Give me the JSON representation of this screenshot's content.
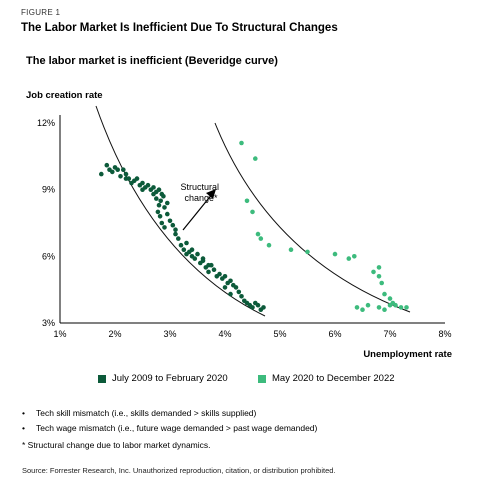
{
  "figure_label": "FIGURE 1",
  "figure_title": "The Labor Market Is Inefficient Due To Structural Changes",
  "chart_data": {
    "type": "scatter",
    "title": "The labor market is inefficient (Beveridge curve)",
    "ylabel": "Job creation rate",
    "xlabel": "Unemployment rate",
    "xlim": [
      1,
      8
    ],
    "ylim": [
      3,
      12
    ],
    "x_ticks": [
      "1%",
      "2%",
      "3%",
      "4%",
      "5%",
      "6%",
      "7%",
      "8%"
    ],
    "y_ticks": [
      "3%",
      "6%",
      "9%",
      "12%"
    ],
    "grid": false,
    "annotation": "Structural change*",
    "series": [
      {
        "name": "July 2009 to February 2020",
        "color": "#0c5a3a",
        "points": [
          [
            1.75,
            9.7
          ],
          [
            1.85,
            10.1
          ],
          [
            1.9,
            9.9
          ],
          [
            1.95,
            9.8
          ],
          [
            2.0,
            10.0
          ],
          [
            2.05,
            9.9
          ],
          [
            2.1,
            9.6
          ],
          [
            2.15,
            9.9
          ],
          [
            2.2,
            9.7
          ],
          [
            2.25,
            9.5
          ],
          [
            2.3,
            9.3
          ],
          [
            2.35,
            9.4
          ],
          [
            2.4,
            9.5
          ],
          [
            2.45,
            9.2
          ],
          [
            2.5,
            9.3
          ],
          [
            2.55,
            9.1
          ],
          [
            2.6,
            9.2
          ],
          [
            2.65,
            9.0
          ],
          [
            2.7,
            9.1
          ],
          [
            2.75,
            8.9
          ],
          [
            2.8,
            9.0
          ],
          [
            2.85,
            8.8
          ],
          [
            2.75,
            8.6
          ],
          [
            2.8,
            8.3
          ],
          [
            2.78,
            8.0
          ],
          [
            2.82,
            7.8
          ],
          [
            2.85,
            7.5
          ],
          [
            2.9,
            7.3
          ],
          [
            2.88,
            8.7
          ],
          [
            2.83,
            8.5
          ],
          [
            2.9,
            8.2
          ],
          [
            2.95,
            7.9
          ],
          [
            3.0,
            7.6
          ],
          [
            3.05,
            7.4
          ],
          [
            3.1,
            7.0
          ],
          [
            3.15,
            6.8
          ],
          [
            3.2,
            6.5
          ],
          [
            3.25,
            6.3
          ],
          [
            3.3,
            6.1
          ],
          [
            3.35,
            6.2
          ],
          [
            3.4,
            6.0
          ],
          [
            3.45,
            5.9
          ],
          [
            3.5,
            6.1
          ],
          [
            3.55,
            5.7
          ],
          [
            3.6,
            5.8
          ],
          [
            3.65,
            5.5
          ],
          [
            3.7,
            5.3
          ],
          [
            3.75,
            5.6
          ],
          [
            3.8,
            5.4
          ],
          [
            3.85,
            5.1
          ],
          [
            3.9,
            5.2
          ],
          [
            3.95,
            5.0
          ],
          [
            4.0,
            5.1
          ],
          [
            4.05,
            4.8
          ],
          [
            4.1,
            4.9
          ],
          [
            4.15,
            4.7
          ],
          [
            4.2,
            4.6
          ],
          [
            4.25,
            4.4
          ],
          [
            4.3,
            4.2
          ],
          [
            4.35,
            4.0
          ],
          [
            4.4,
            3.9
          ],
          [
            4.45,
            3.8
          ],
          [
            4.5,
            3.7
          ],
          [
            4.55,
            3.9
          ],
          [
            4.6,
            3.8
          ],
          [
            4.65,
            3.6
          ],
          [
            4.7,
            3.7
          ],
          [
            4.0,
            4.6
          ],
          [
            4.1,
            4.3
          ],
          [
            3.7,
            5.6
          ],
          [
            3.6,
            5.9
          ],
          [
            3.4,
            6.3
          ],
          [
            3.3,
            6.6
          ],
          [
            3.1,
            7.2
          ],
          [
            2.95,
            8.4
          ],
          [
            2.7,
            8.8
          ],
          [
            2.5,
            9.0
          ],
          [
            2.2,
            9.5
          ]
        ]
      },
      {
        "name": "May 2020 to December 2022",
        "color": "#3dbb7d",
        "points": [
          [
            4.3,
            11.1
          ],
          [
            4.55,
            10.4
          ],
          [
            4.4,
            8.5
          ],
          [
            4.5,
            8.0
          ],
          [
            4.6,
            7.0
          ],
          [
            4.65,
            6.8
          ],
          [
            4.8,
            6.5
          ],
          [
            5.2,
            6.3
          ],
          [
            5.5,
            6.2
          ],
          [
            6.0,
            6.1
          ],
          [
            6.25,
            5.9
          ],
          [
            6.35,
            6.0
          ],
          [
            6.7,
            5.3
          ],
          [
            6.8,
            5.5
          ],
          [
            6.8,
            5.1
          ],
          [
            6.85,
            4.8
          ],
          [
            6.9,
            4.3
          ],
          [
            7.0,
            4.1
          ],
          [
            7.05,
            3.9
          ],
          [
            7.1,
            3.8
          ],
          [
            7.2,
            3.7
          ],
          [
            7.3,
            3.7
          ],
          [
            6.4,
            3.7
          ],
          [
            6.5,
            3.6
          ],
          [
            6.8,
            3.7
          ],
          [
            6.9,
            3.6
          ],
          [
            7.0,
            3.8
          ],
          [
            6.6,
            3.8
          ]
        ]
      }
    ]
  },
  "notes": {
    "bullet_1": "Tech skill mismatch (i.e., skills demanded > skills supplied)",
    "bullet_2": "Tech wage mismatch (i.e., future wage demanded > past wage demanded)",
    "footnote": "* Structural change due to labor market dynamics."
  },
  "source": "Source: Forrester Research, Inc. Unauthorized reproduction, citation, or distribution prohibited."
}
